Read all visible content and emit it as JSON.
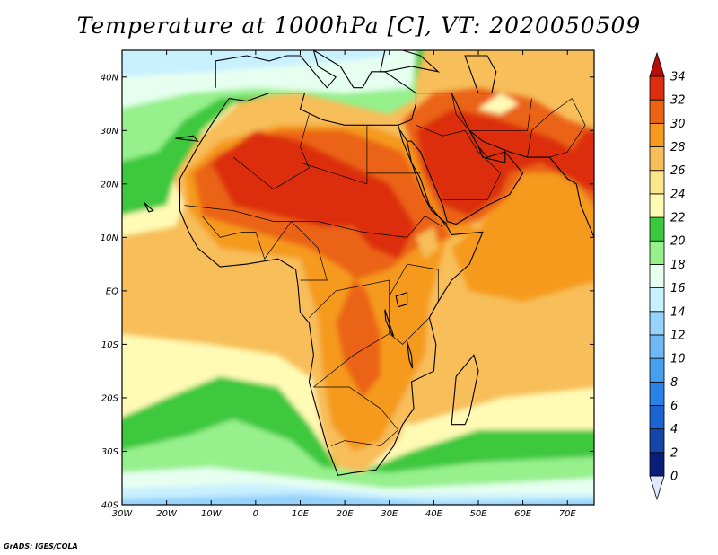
{
  "title": "Temperature at 1000hPa [C], VT: 2020050509",
  "credit": "GrADS: IGES/COLA",
  "map": {
    "lon_range": [
      -30,
      76
    ],
    "lat_range": [
      -40,
      45
    ],
    "lon_ticks": [
      {
        "lon": -30,
        "label": "30W"
      },
      {
        "lon": -20,
        "label": "20W"
      },
      {
        "lon": -10,
        "label": "10W"
      },
      {
        "lon": 0,
        "label": "0"
      },
      {
        "lon": 10,
        "label": "10E"
      },
      {
        "lon": 20,
        "label": "20E"
      },
      {
        "lon": 30,
        "label": "30E"
      },
      {
        "lon": 40,
        "label": "40E"
      },
      {
        "lon": 50,
        "label": "50E"
      },
      {
        "lon": 60,
        "label": "60E"
      },
      {
        "lon": 70,
        "label": "70E"
      }
    ],
    "lat_ticks": [
      {
        "lat": 40,
        "label": "40N"
      },
      {
        "lat": 30,
        "label": "30N"
      },
      {
        "lat": 20,
        "label": "20N"
      },
      {
        "lat": 10,
        "label": "10N"
      },
      {
        "lat": 0,
        "label": "EQ"
      },
      {
        "lat": -10,
        "label": "10S"
      },
      {
        "lat": -20,
        "label": "20S"
      },
      {
        "lat": -30,
        "label": "30S"
      },
      {
        "lat": -40,
        "label": "40S"
      }
    ]
  },
  "colorbar": {
    "levels": [
      0,
      2,
      4,
      6,
      8,
      10,
      12,
      14,
      16,
      18,
      20,
      22,
      24,
      26,
      28,
      30,
      32,
      34
    ],
    "labels": [
      "0",
      "2",
      "4",
      "6",
      "8",
      "10",
      "12",
      "14",
      "16",
      "18",
      "20",
      "22",
      "24",
      "26",
      "28",
      "30",
      "32",
      "34"
    ],
    "colors": [
      "#e0e8ff",
      "#0a1e7a",
      "#1446a8",
      "#1c64d2",
      "#2882e8",
      "#46a0f0",
      "#6eb9f5",
      "#96d2fa",
      "#c8f0ff",
      "#e6fff0",
      "#96f08c",
      "#3cc83c",
      "#fffab4",
      "#fae68c",
      "#f7be5a",
      "#f59a1e",
      "#eb6414",
      "#dc2d0f",
      "#b40f0a"
    ]
  },
  "field_colors": {
    "c14": "#96d2fa",
    "c16": "#c8f0ff",
    "c18": "#e6fff0",
    "c20": "#96f08c",
    "c22": "#3cc83c",
    "c24": "#fffab4",
    "c26": "#fae68c",
    "c28": "#f7be5a",
    "c30": "#f59a1e",
    "c32": "#eb6414",
    "c34": "#dc2d0f"
  }
}
